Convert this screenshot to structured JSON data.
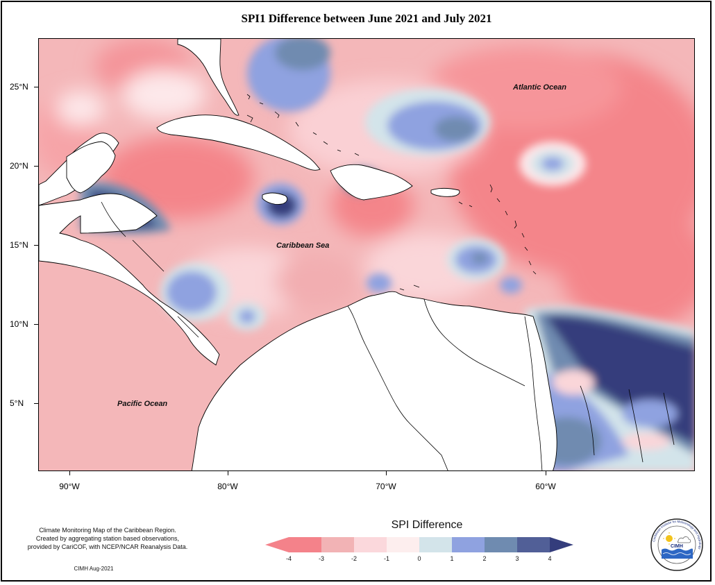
{
  "title": "SPI1 Difference between June 2021 and July 2021",
  "map": {
    "lon_range": [
      -91.8,
      -50.6
    ],
    "lat_range": [
      1.0,
      28.3
    ],
    "lat_ticks": [
      {
        "label": "25°N",
        "lat": 25
      },
      {
        "label": "20°N",
        "lat": 20
      },
      {
        "label": "15°N",
        "lat": 15
      },
      {
        "label": "10°N",
        "lat": 10
      },
      {
        "label": "5°N",
        "lat": 5
      }
    ],
    "lon_ticks": [
      {
        "label": "90°W",
        "lon": -90
      },
      {
        "label": "80°W",
        "lon": -80
      },
      {
        "label": "70°W",
        "lon": -70
      },
      {
        "label": "60°W",
        "lon": -60
      }
    ],
    "labels": {
      "atlantic": "Atlantic Ocean",
      "caribbean": "Caribbean Sea",
      "pacific": "Pacific Ocean"
    }
  },
  "credit": {
    "line1": "Climate Monitoring Map of the Caribbean Region.",
    "line2": "Created by aggregating station based observations,",
    "line3": "provided by CariCOF, with NCEP/NCAR Reanalysis Data.",
    "source": "CIMH Aug-2021"
  },
  "legend": {
    "title": "SPI Difference",
    "ticks": [
      "-4",
      "-3",
      "-2",
      "-1",
      "0",
      "1",
      "2",
      "3",
      "4"
    ],
    "colors": [
      "#f4828a",
      "#f2b3b5",
      "#fbd8dc",
      "#fdeeee",
      "#d3e4ea",
      "#8fa2e0",
      "#6f8bb0",
      "#515f97"
    ],
    "under_color": "#f4828a",
    "over_color": "#343d7c"
  },
  "logo": {
    "text": "CIMH",
    "ring_text": "Caribbean Institute for Meteorology and Hydrology"
  },
  "chart_data": {
    "type": "heatmap",
    "title": "SPI1 Difference between June 2021 and July 2021",
    "xlabel": "",
    "ylabel": "",
    "colorbar_label": "SPI Difference",
    "colorbar_range": [
      -4,
      4
    ],
    "xlim": [
      -91.8,
      -50.6
    ],
    "ylim": [
      1.0,
      28.3
    ]
  }
}
